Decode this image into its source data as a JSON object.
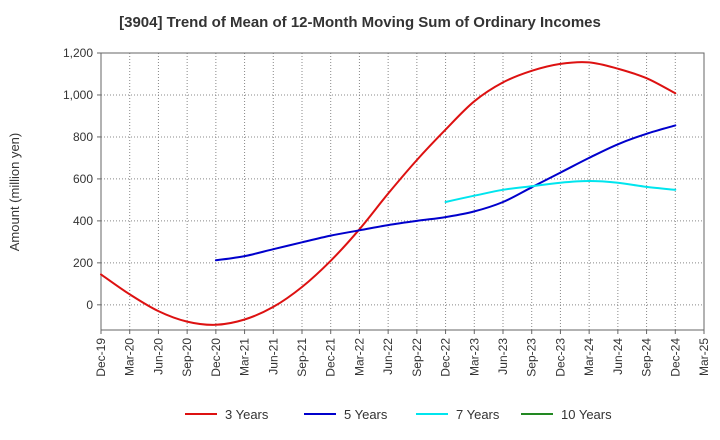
{
  "chart_data": {
    "type": "line",
    "title": "[3904]  Trend of Mean of 12-Month Moving Sum of Ordinary Incomes",
    "xlabel": "",
    "ylabel": "Amount (million yen)",
    "ylim": [
      -120,
      1200
    ],
    "yticks": [
      0,
      200,
      400,
      600,
      800,
      1000,
      1200
    ],
    "ytick_labels": [
      "0",
      "200",
      "400",
      "600",
      "800",
      "1,000",
      "1,200"
    ],
    "categories": [
      "Dec-19",
      "Mar-20",
      "Jun-20",
      "Sep-20",
      "Dec-20",
      "Mar-21",
      "Jun-21",
      "Sep-21",
      "Dec-21",
      "Mar-22",
      "Jun-22",
      "Sep-22",
      "Dec-22",
      "Mar-23",
      "Jun-23",
      "Sep-23",
      "Dec-23",
      "Mar-24",
      "Jun-24",
      "Sep-24",
      "Dec-24",
      "Mar-25"
    ],
    "grid": true,
    "legend_position": "bottom",
    "series": [
      {
        "name": "3 Years",
        "color": "#dd1111",
        "values": [
          145,
          50,
          -30,
          -80,
          -95,
          -70,
          -10,
          85,
          210,
          360,
          530,
          690,
          835,
          970,
          1060,
          1115,
          1148,
          1155,
          1125,
          1080,
          1008,
          null
        ]
      },
      {
        "name": "5 Years",
        "color": "#0000cc",
        "values": [
          null,
          null,
          null,
          null,
          212,
          232,
          265,
          298,
          330,
          355,
          380,
          400,
          418,
          445,
          490,
          560,
          630,
          700,
          765,
          815,
          855,
          null
        ]
      },
      {
        "name": "7 Years",
        "color": "#00e5ee",
        "values": [
          null,
          null,
          null,
          null,
          null,
          null,
          null,
          null,
          null,
          null,
          null,
          null,
          490,
          520,
          548,
          565,
          582,
          590,
          582,
          562,
          548,
          null
        ]
      },
      {
        "name": "10 Years",
        "color": "#228822",
        "values": [
          null,
          null,
          null,
          null,
          null,
          null,
          null,
          null,
          null,
          null,
          null,
          null,
          null,
          null,
          null,
          null,
          null,
          null,
          null,
          null,
          null,
          null
        ]
      }
    ]
  }
}
